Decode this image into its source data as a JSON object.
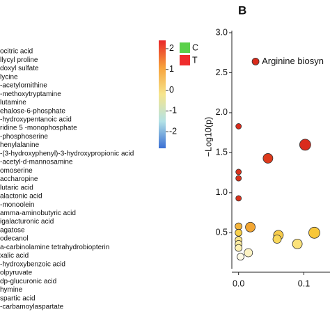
{
  "heatmap": {
    "row_labels": [
      "ocitric acid",
      "llycyl proline",
      "doxyl sulfate",
      "lycine",
      "-acetylornithine",
      "-methoxytryptamine",
      "lutamine",
      "ehalose-6-phosphate",
      "-hydroxypentanoic acid",
      "ridine 5 -monophosphate",
      "-phosphoserine",
      "henylalanine",
      "-(3-hydroxyphenyl)-3-hydroxypropionic acid",
      "-acetyl-d-mannosamine",
      "omoserine",
      "accharopine",
      "lutaric acid",
      "alactonic acid",
      "-monoolein",
      "amma-aminobutyric acid",
      "igalacturonic acid",
      "agatose",
      "odecanol",
      "a-carbinolamine tetrahydrobiopterin",
      "xalic acid",
      "-hydroxybenzoic acid",
      "olpyruvate",
      "dp-glucuronic acid",
      "hymine",
      "spartic acid",
      "-carbamoylaspartate"
    ],
    "colorbar": {
      "clim": [
        -2.8,
        2.4
      ],
      "ticks": [
        2,
        1,
        0,
        -1,
        -2
      ],
      "colors": [
        "#e8262a",
        "#f7a13a",
        "#f6e58c",
        "#b3e2e6",
        "#3a6fd4"
      ]
    },
    "groups": [
      {
        "name": "C",
        "color": "#5bd14a"
      },
      {
        "name": "T",
        "color": "#ef2d2d"
      }
    ]
  },
  "chart_data": {
    "type": "bubble",
    "panel_label": "B",
    "ylabel": "−Log10(p)",
    "annotation": "Arginine biosyn",
    "x": [
      0.026,
      0.0,
      0.102,
      0.045,
      0.0,
      0.0,
      0.0,
      0.018,
      0.0,
      0.0,
      0.061,
      0.059,
      0.116,
      0.09,
      0.0,
      0.0,
      0.0,
      0.015,
      0.003
    ],
    "values": [
      2.64,
      1.83,
      1.6,
      1.43,
      1.26,
      1.18,
      0.93,
      0.57,
      0.58,
      0.5,
      0.47,
      0.42,
      0.5,
      0.36,
      0.41,
      0.36,
      0.31,
      0.25,
      0.2
    ],
    "sizes": [
      5,
      4,
      8,
      7,
      4,
      4,
      4,
      7,
      5,
      5,
      7,
      6,
      8,
      7,
      5,
      5,
      5,
      6,
      5
    ],
    "colors": [
      "#d92b1c",
      "#d92b1c",
      "#d92b1c",
      "#dd3a1c",
      "#d9321c",
      "#d9321c",
      "#d9321c",
      "#f2a633",
      "#f5b53c",
      "#f8d04a",
      "#f8cc4a",
      "#f9d85a",
      "#f8c73a",
      "#fbe27a",
      "#fbe58a",
      "#fcec9f",
      "#fdf0b2",
      "#fdf3c3",
      "#fefae6"
    ],
    "xlim": [
      -0.005,
      0.14
    ],
    "ylim": [
      0.05,
      3.0
    ],
    "xticks": [
      {
        "value": 0,
        "label": "0.0"
      },
      0.1
    ],
    "yticks": [
      {
        "value": 0.5,
        "label": "0.5"
      },
      {
        "value": 1,
        "label": "1.0"
      },
      {
        "value": 1.5,
        "label": "1.5"
      },
      {
        "value": 2,
        "label": "2.0"
      },
      {
        "value": 2.5,
        "label": "2.5"
      },
      {
        "value": 3,
        "label": "3.0"
      }
    ]
  }
}
